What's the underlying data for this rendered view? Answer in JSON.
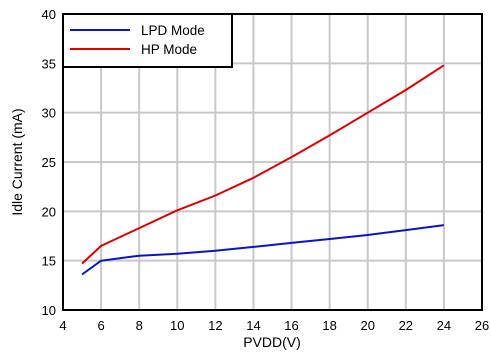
{
  "chart_data": {
    "type": "line",
    "title": "",
    "xlabel": "PVDD(V)",
    "ylabel": "Idle Current (mA)",
    "xlim": [
      4,
      26
    ],
    "ylim": [
      10,
      40
    ],
    "x_ticks": [
      "4",
      "6",
      "8",
      "10",
      "12",
      "14",
      "16",
      "18",
      "20",
      "22",
      "24",
      "26"
    ],
    "y_ticks": [
      "10",
      "15",
      "20",
      "25",
      "30",
      "35",
      "40"
    ],
    "grid": true,
    "legend_position": "top-left",
    "series": [
      {
        "name": "LPD Mode",
        "color": "#0a14c8",
        "points": [
          [
            5,
            13.6
          ],
          [
            6,
            15.0
          ],
          [
            8,
            15.5
          ],
          [
            10,
            15.7
          ],
          [
            12,
            16.0
          ],
          [
            14,
            16.4
          ],
          [
            16,
            16.8
          ],
          [
            18,
            17.2
          ],
          [
            20,
            17.6
          ],
          [
            22,
            18.1
          ],
          [
            24,
            18.6
          ]
        ]
      },
      {
        "name": "HP Mode",
        "color": "#e00000",
        "points": [
          [
            5,
            14.7
          ],
          [
            6,
            16.5
          ],
          [
            8,
            18.3
          ],
          [
            10,
            20.1
          ],
          [
            12,
            21.6
          ],
          [
            14,
            23.4
          ],
          [
            16,
            25.5
          ],
          [
            18,
            27.7
          ],
          [
            20,
            30.0
          ],
          [
            22,
            32.3
          ],
          [
            24,
            34.8
          ]
        ]
      }
    ]
  }
}
